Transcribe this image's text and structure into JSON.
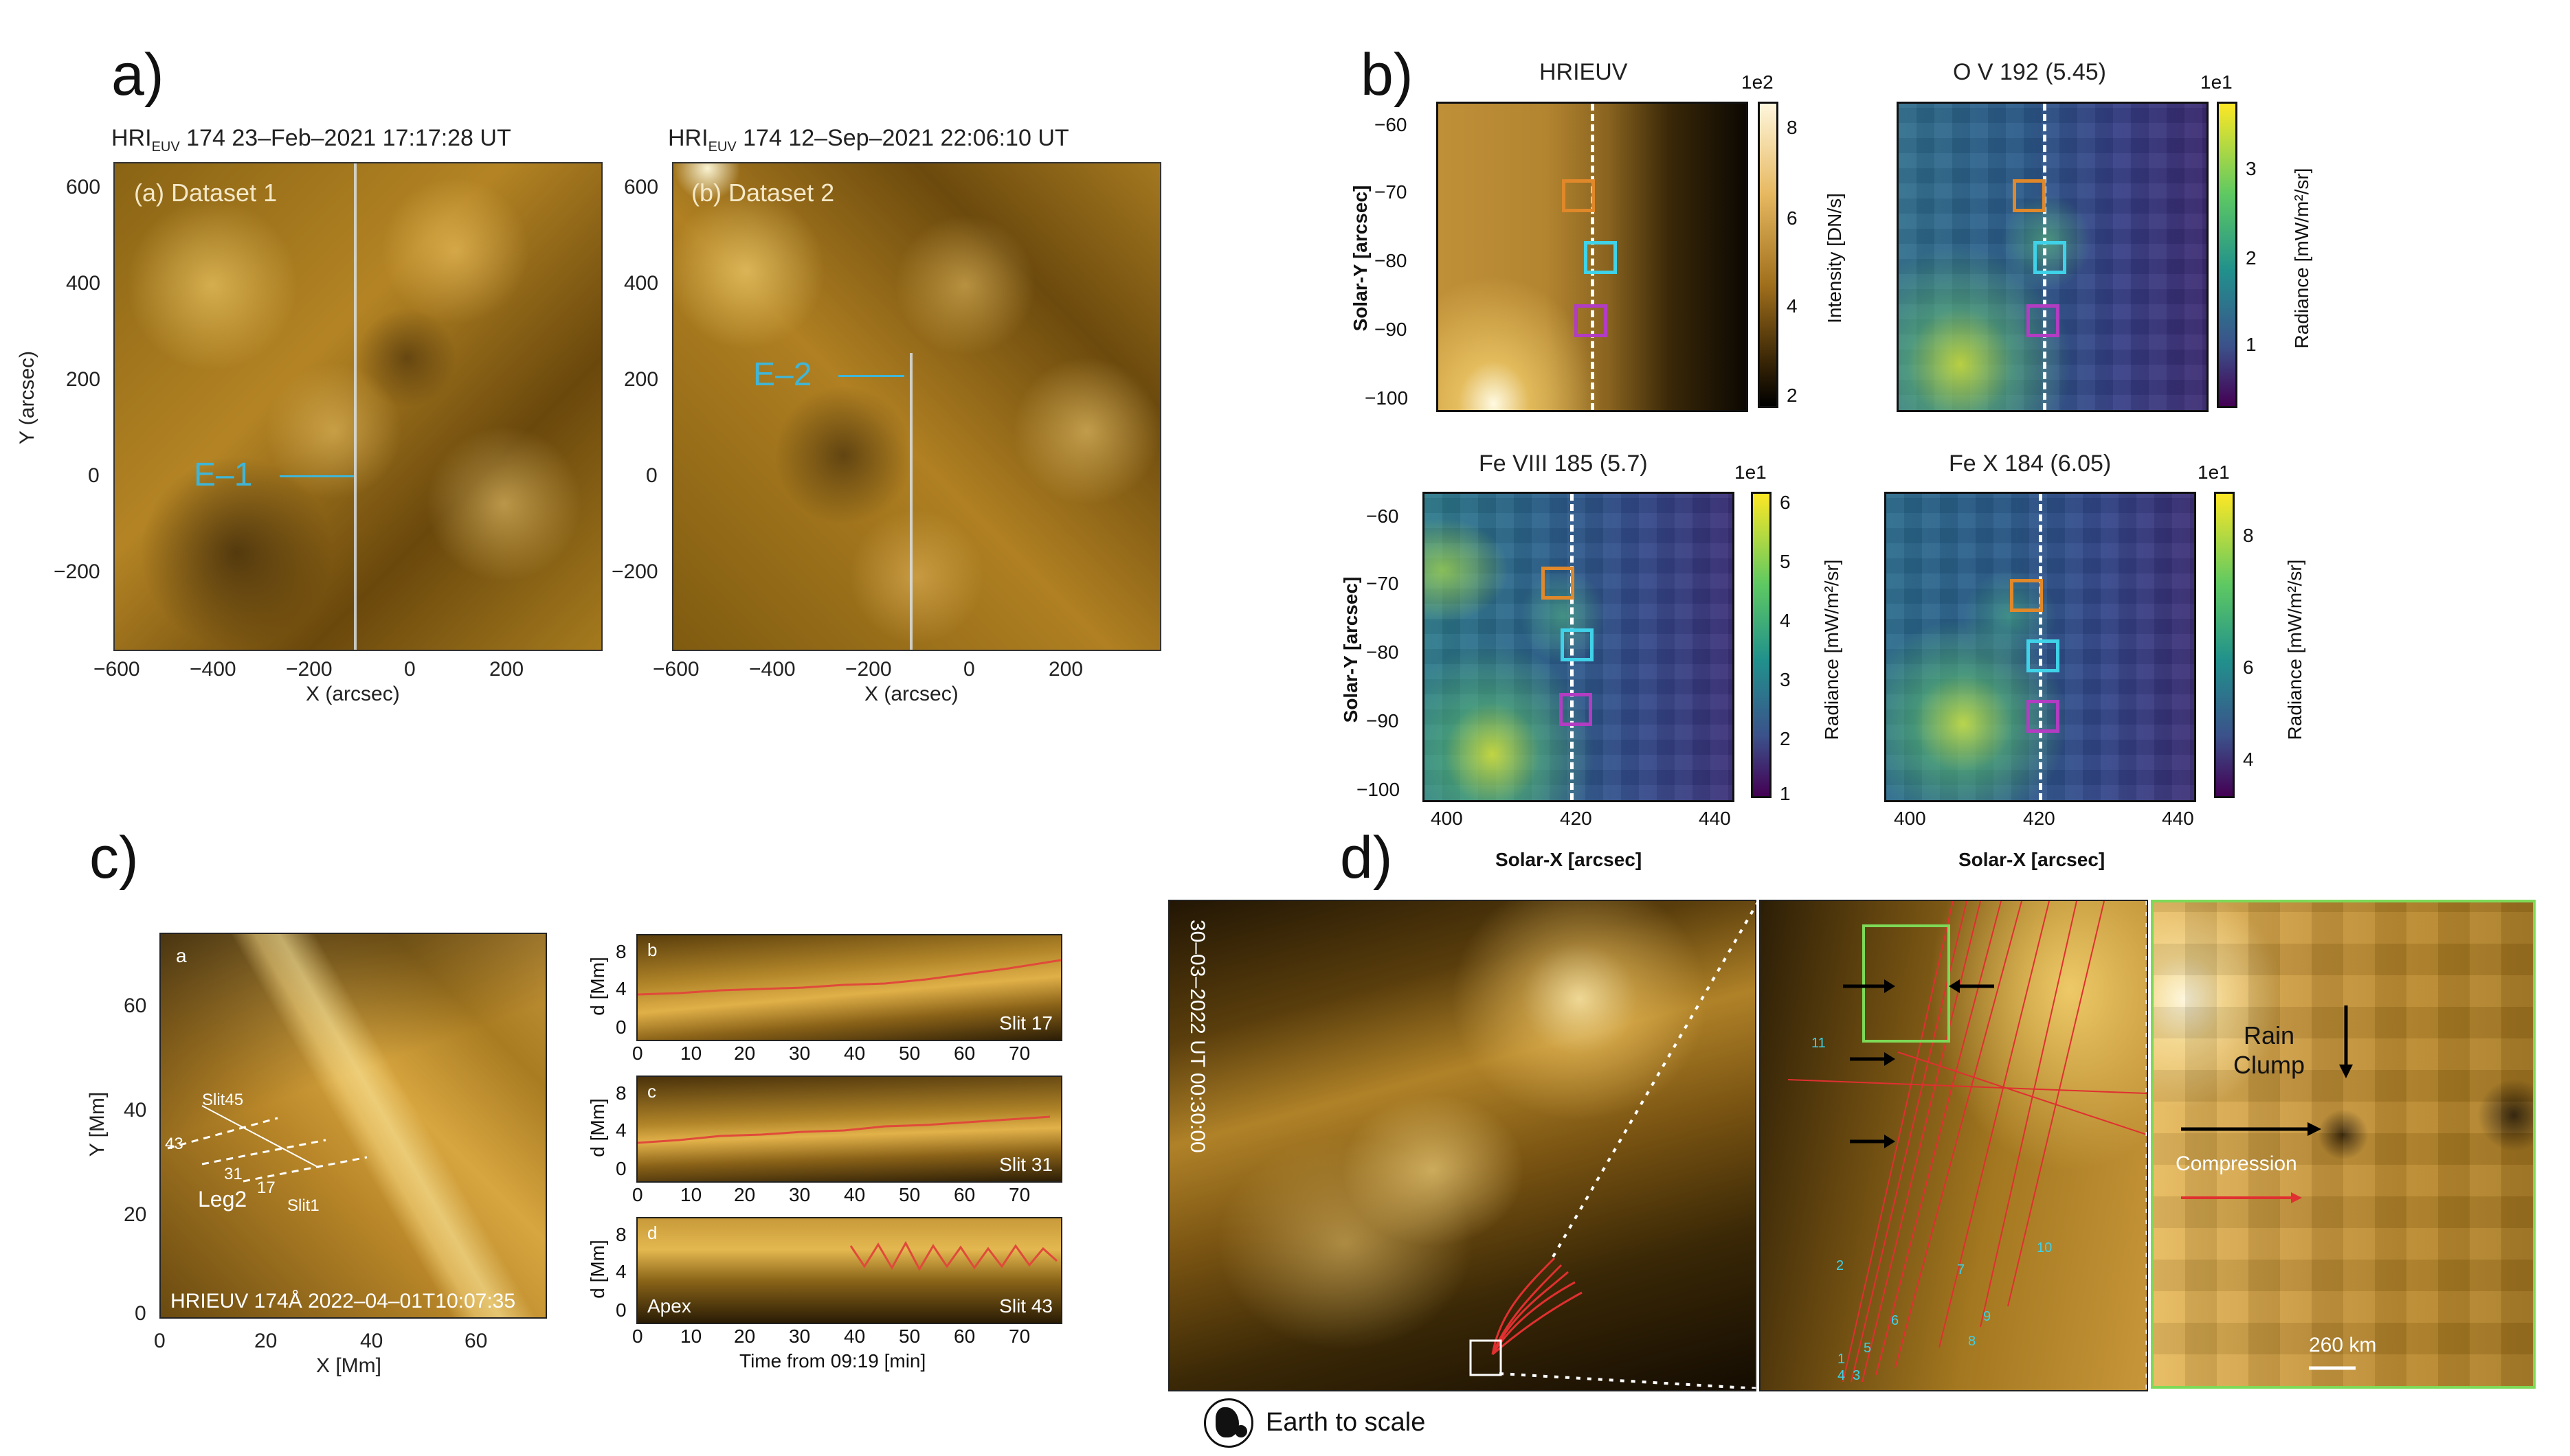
{
  "panel_letters": {
    "a": "a)",
    "b": "b)",
    "c": "c)",
    "d": "d)"
  },
  "panel_a": {
    "left": {
      "title_prefix": "HRI",
      "title_sub": "EUV",
      "title_rest": "174  23–Feb–2021  17:17:28  UT",
      "inset_label": "(a) Dataset 1",
      "feature_label": "E–1",
      "ylabel": "Y (arcsec)",
      "xlabel": "X (arcsec)",
      "xticks": [
        "−600",
        "−400",
        "−200",
        "0",
        "200"
      ],
      "yticks": [
        "600",
        "400",
        "200",
        "0",
        "−200"
      ]
    },
    "right": {
      "title_prefix": "HRI",
      "title_sub": "EUV",
      "title_rest": "174  12–Sep–2021  22:06:10  UT",
      "inset_label": "(b) Dataset 2",
      "feature_label": "E–2",
      "xlabel": "X (arcsec)",
      "xticks": [
        "−600",
        "−400",
        "−200",
        "0",
        "200"
      ],
      "yticks": [
        "600",
        "400",
        "200",
        "0",
        "−200"
      ]
    }
  },
  "panel_b": {
    "xlabel": "Solar-X [arcsec]",
    "ylabel": "Solar-Y [arcsec]",
    "xticks": [
      "400",
      "420",
      "440"
    ],
    "yticks": [
      "−60",
      "−70",
      "−80",
      "−90",
      "−100"
    ],
    "maps": [
      {
        "title": "HRIEUV",
        "cb_exp": "1e2",
        "cb_label": "Intensity [DN/s]",
        "cb_ticks": [
          "8",
          "6",
          "4",
          "2"
        ]
      },
      {
        "title": "O V 192 (5.45)",
        "cb_exp": "1e1",
        "cb_label": "Radiance [mW/m²/sr]",
        "cb_ticks": [
          "3",
          "2",
          "1"
        ]
      },
      {
        "title": "Fe VIII 185 (5.7)",
        "cb_exp": "1e1",
        "cb_label": "Radiance [mW/m²/sr]",
        "cb_ticks": [
          "6",
          "5",
          "4",
          "3",
          "2",
          "1"
        ]
      },
      {
        "title": "Fe X 184 (6.05)",
        "cb_exp": "1e1",
        "cb_label": "Radiance [mW/m²/sr]",
        "cb_ticks": [
          "8",
          "6",
          "4"
        ]
      }
    ]
  },
  "panel_c": {
    "left": {
      "sub_label": "a",
      "ylabel": "Y [Mm]",
      "xlabel": "X [Mm]",
      "xticks": [
        "0",
        "20",
        "40",
        "60"
      ],
      "yticks": [
        "60",
        "40",
        "20",
        "0"
      ],
      "annotations": {
        "slit45": "Slit45",
        "n43": "43",
        "n31": "31",
        "n17": "17",
        "slit1": "Slit1",
        "leg2": "Leg2"
      },
      "footer": "HRIEUV 174Å 2022–04–01T10:07:35"
    },
    "right": {
      "ylabel": "d [Mm]",
      "xlabel": "Time from 09:19 [min]",
      "xticks": [
        "0",
        "10",
        "20",
        "30",
        "40",
        "50",
        "60",
        "70"
      ],
      "yticks": [
        "8",
        "4",
        "0"
      ],
      "plots": [
        {
          "sub": "b",
          "slit": "Slit 17"
        },
        {
          "sub": "c",
          "slit": "Slit 31"
        },
        {
          "sub": "d",
          "slit": "Slit 43",
          "extra": "Apex"
        }
      ]
    }
  },
  "panel_d": {
    "timestamp": "30–03–2022 UT 00:30:00",
    "slit_numbers": [
      "11",
      "2",
      "6",
      "7",
      "10",
      "9",
      "8",
      "5",
      "1",
      "4",
      "3"
    ],
    "rain_clump": "Rain\nClump",
    "compression": "Compression",
    "scale_label": "260 km",
    "earth_caption": "Earth to scale"
  },
  "colors": {
    "gold": "#c9961e",
    "dark": "#1a1002",
    "cyan": "#3fb6d8",
    "orange": "#e0882a",
    "magenta": "#b23cc2",
    "green_box": "#7ed957"
  }
}
